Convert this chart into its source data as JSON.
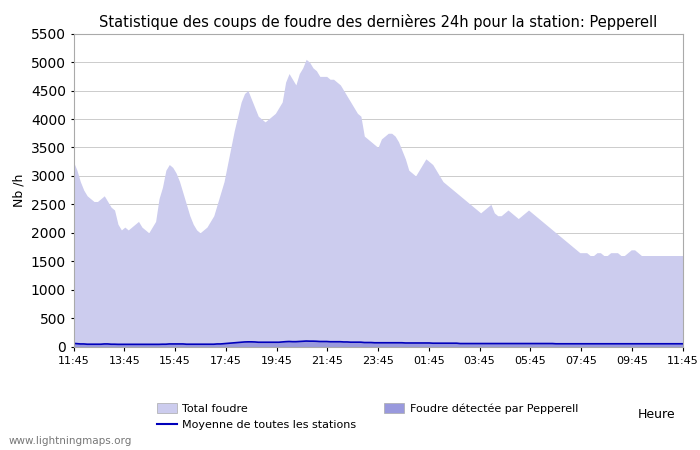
{
  "title": "Statistique des coups de foudre des dernières 24h pour la station: Pepperell",
  "ylabel": "Nb /h",
  "xlabel": "Heure",
  "watermark": "www.lightningmaps.org",
  "ylim": [
    0,
    5500
  ],
  "yticks": [
    0,
    500,
    1000,
    1500,
    2000,
    2500,
    3000,
    3500,
    4000,
    4500,
    5000,
    5500
  ],
  "xtick_labels": [
    "11:45",
    "13:45",
    "15:45",
    "17:45",
    "19:45",
    "21:45",
    "23:45",
    "01:45",
    "03:45",
    "05:45",
    "07:45",
    "09:45",
    "11:45"
  ],
  "color_total": "#ccccee",
  "color_pepperell": "#9999dd",
  "color_moyenne": "#0000bb",
  "legend_total": "Total foudre",
  "legend_pepperell": "Foudre détectée par Pepperell",
  "legend_moyenne": "Moyenne de toutes les stations",
  "bg_color": "#ffffff",
  "grid_color": "#cccccc",
  "total_foudre": [
    3250,
    3100,
    2900,
    2750,
    2650,
    2600,
    2550,
    2550,
    2600,
    2650,
    2550,
    2450,
    2400,
    2150,
    2050,
    2100,
    2050,
    2100,
    2150,
    2200,
    2100,
    2050,
    2000,
    2100,
    2200,
    2600,
    2800,
    3100,
    3200,
    3150,
    3050,
    2900,
    2700,
    2500,
    2300,
    2150,
    2050,
    2000,
    2050,
    2100,
    2200,
    2300,
    2500,
    2700,
    2900,
    3200,
    3500,
    3800,
    4050,
    4300,
    4450,
    4500,
    4350,
    4200,
    4050,
    4000,
    3950,
    4000,
    4050,
    4100,
    4200,
    4300,
    4650,
    4800,
    4700,
    4600,
    4800,
    4900,
    5050,
    5000,
    4900,
    4850,
    4750,
    4750,
    4750,
    4700,
    4700,
    4650,
    4600,
    4500,
    4400,
    4300,
    4200,
    4100,
    4050,
    3700,
    3650,
    3600,
    3550,
    3500,
    3650,
    3700,
    3750,
    3750,
    3700,
    3600,
    3450,
    3300,
    3100,
    3050,
    3000,
    3100,
    3200,
    3300,
    3250,
    3200,
    3100,
    3000,
    2900,
    2850,
    2800,
    2750,
    2700,
    2650,
    2600,
    2550,
    2500,
    2450,
    2400,
    2350,
    2400,
    2450,
    2500,
    2350,
    2300,
    2300,
    2350,
    2400,
    2350,
    2300,
    2250,
    2300,
    2350,
    2400,
    2350,
    2300,
    2250,
    2200,
    2150,
    2100,
    2050,
    2000,
    1950,
    1900,
    1850,
    1800,
    1750,
    1700,
    1650,
    1650,
    1650,
    1600,
    1600,
    1650,
    1650,
    1600,
    1600,
    1650,
    1650,
    1650,
    1600,
    1600,
    1650,
    1700,
    1700,
    1650,
    1600,
    1600,
    1600,
    1600,
    1600,
    1600,
    1600,
    1600,
    1600,
    1600,
    1600,
    1600,
    1600
  ],
  "pepperell": [
    60,
    55,
    50,
    50,
    45,
    45,
    45,
    45,
    45,
    50,
    50,
    45,
    45,
    40,
    40,
    40,
    40,
    40,
    40,
    40,
    40,
    40,
    40,
    40,
    40,
    40,
    45,
    45,
    50,
    50,
    50,
    50,
    50,
    45,
    45,
    45,
    45,
    45,
    45,
    45,
    45,
    45,
    50,
    50,
    55,
    60,
    65,
    70,
    75,
    80,
    85,
    90,
    90,
    85,
    80,
    80,
    80,
    80,
    80,
    80,
    80,
    85,
    90,
    95,
    90,
    90,
    95,
    100,
    105,
    100,
    100,
    100,
    95,
    95,
    95,
    90,
    90,
    90,
    90,
    85,
    85,
    80,
    80,
    80,
    80,
    75,
    75,
    75,
    70,
    70,
    70,
    70,
    70,
    70,
    70,
    70,
    70,
    65,
    65,
    65,
    65,
    65,
    65,
    65,
    65,
    60,
    60,
    60,
    60,
    60,
    60,
    60,
    60,
    55,
    55,
    55,
    55,
    55,
    55,
    55,
    55,
    55,
    55,
    55,
    55,
    55,
    55,
    55,
    55,
    55,
    55,
    55,
    55,
    55,
    55,
    55,
    55,
    55,
    55,
    55,
    55,
    50,
    50,
    50,
    50,
    50,
    50,
    50,
    50,
    50,
    50,
    50,
    50,
    50,
    50,
    50,
    50,
    50,
    50,
    50,
    50,
    50,
    50,
    50,
    50,
    50,
    50,
    50,
    50,
    50,
    50,
    50,
    50,
    50,
    50,
    50,
    50,
    50,
    50
  ],
  "moyenne": [
    55,
    50,
    45,
    45,
    40,
    40,
    40,
    40,
    40,
    45,
    45,
    40,
    40,
    38,
    38,
    38,
    38,
    38,
    38,
    38,
    38,
    38,
    38,
    38,
    38,
    38,
    40,
    40,
    45,
    45,
    45,
    45,
    45,
    40,
    40,
    40,
    40,
    40,
    40,
    40,
    40,
    40,
    45,
    45,
    50,
    55,
    60,
    65,
    70,
    75,
    80,
    82,
    82,
    80,
    75,
    75,
    75,
    75,
    75,
    75,
    75,
    80,
    85,
    88,
    85,
    85,
    88,
    92,
    96,
    94,
    94,
    92,
    88,
    88,
    88,
    84,
    84,
    84,
    84,
    80,
    80,
    76,
    76,
    76,
    76,
    70,
    70,
    70,
    66,
    66,
    66,
    66,
    66,
    66,
    66,
    66,
    66,
    62,
    62,
    62,
    62,
    62,
    62,
    62,
    62,
    58,
    58,
    58,
    58,
    58,
    58,
    58,
    58,
    52,
    52,
    52,
    52,
    52,
    52,
    52,
    52,
    52,
    52,
    52,
    52,
    52,
    52,
    52,
    52,
    52,
    52,
    52,
    52,
    52,
    52,
    52,
    52,
    52,
    52,
    52,
    52,
    48,
    48,
    48,
    48,
    48,
    48,
    48,
    48,
    48,
    48,
    48,
    48,
    48,
    48,
    48,
    48,
    48,
    48,
    48,
    48,
    48,
    48,
    48,
    48,
    48,
    48,
    48,
    48,
    48,
    48,
    48,
    48,
    48,
    48,
    48,
    48,
    48,
    48
  ]
}
